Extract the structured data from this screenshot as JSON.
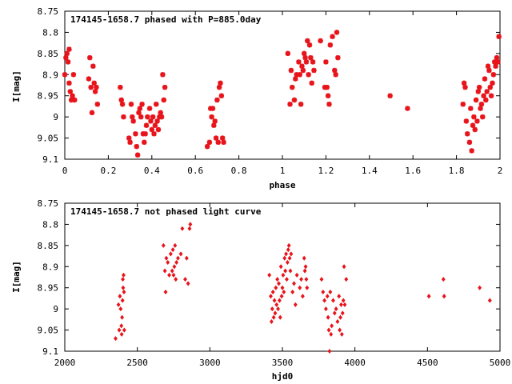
{
  "chart_data": [
    {
      "type": "scatter",
      "title": "174145-1658.7 phased with P=885.0day",
      "xlabel": "phase",
      "ylabel": "I[mag]",
      "xlim": [
        0,
        2
      ],
      "ylim": [
        9.1,
        8.75
      ],
      "y_inverted": true,
      "xticks": [
        0,
        0.2,
        0.4,
        0.6,
        0.8,
        1,
        1.2,
        1.4,
        1.6,
        1.8,
        2
      ],
      "xtick_labels": [
        "0",
        "0.2",
        "0.4",
        "0.6",
        "0.8",
        "1",
        "1.2",
        "1.4",
        "1.6",
        "1.8",
        "2"
      ],
      "yticks": [
        8.75,
        8.8,
        8.85,
        8.9,
        8.95,
        9,
        9.05,
        9.1
      ],
      "ytick_labels": [
        "8.75",
        "8.8",
        "8.85",
        "8.9",
        "8.95",
        "9",
        "9.05",
        "9.1"
      ],
      "grid": false,
      "marker_color": "#e8141b",
      "marker": "star",
      "points": [
        [
          0.0,
          8.9
        ],
        [
          0.005,
          8.86
        ],
        [
          0.01,
          8.85
        ],
        [
          0.015,
          8.87
        ],
        [
          0.02,
          8.84
        ],
        [
          0.02,
          8.92
        ],
        [
          0.025,
          8.94
        ],
        [
          0.03,
          8.96
        ],
        [
          0.035,
          8.95
        ],
        [
          0.04,
          8.9
        ],
        [
          0.045,
          8.96
        ],
        [
          0.11,
          8.91
        ],
        [
          0.115,
          8.86
        ],
        [
          0.12,
          8.93
        ],
        [
          0.125,
          8.99
        ],
        [
          0.13,
          8.88
        ],
        [
          0.135,
          8.92
        ],
        [
          0.14,
          8.94
        ],
        [
          0.145,
          8.93
        ],
        [
          0.15,
          8.97
        ],
        [
          0.255,
          8.93
        ],
        [
          0.26,
          8.96
        ],
        [
          0.265,
          8.97
        ],
        [
          0.27,
          9.0
        ],
        [
          0.295,
          9.05
        ],
        [
          0.3,
          9.06
        ],
        [
          0.305,
          8.97
        ],
        [
          0.31,
          9.0
        ],
        [
          0.315,
          9.01
        ],
        [
          0.325,
          9.04
        ],
        [
          0.33,
          9.07
        ],
        [
          0.335,
          9.09
        ],
        [
          0.34,
          8.99
        ],
        [
          0.345,
          8.98
        ],
        [
          0.35,
          9.0
        ],
        [
          0.355,
          8.97
        ],
        [
          0.36,
          9.04
        ],
        [
          0.365,
          9.06
        ],
        [
          0.37,
          9.04
        ],
        [
          0.375,
          9.02
        ],
        [
          0.38,
          9.0
        ],
        [
          0.39,
          8.98
        ],
        [
          0.395,
          9.01
        ],
        [
          0.4,
          9.03
        ],
        [
          0.405,
          9.0
        ],
        [
          0.41,
          9.04
        ],
        [
          0.415,
          9.02
        ],
        [
          0.42,
          8.97
        ],
        [
          0.425,
          9.01
        ],
        [
          0.43,
          9.03
        ],
        [
          0.435,
          9.0
        ],
        [
          0.44,
          8.99
        ],
        [
          0.445,
          9.0
        ],
        [
          0.45,
          8.9
        ],
        [
          0.455,
          8.96
        ],
        [
          0.46,
          8.93
        ],
        [
          0.655,
          9.07
        ],
        [
          0.665,
          9.06
        ],
        [
          0.67,
          8.98
        ],
        [
          0.675,
          9.0
        ],
        [
          0.68,
          8.98
        ],
        [
          0.685,
          9.02
        ],
        [
          0.69,
          9.01
        ],
        [
          0.695,
          9.05
        ],
        [
          0.7,
          8.96
        ],
        [
          0.705,
          9.06
        ],
        [
          0.71,
          8.93
        ],
        [
          0.715,
          8.92
        ],
        [
          0.72,
          8.95
        ],
        [
          0.725,
          9.05
        ],
        [
          0.73,
          9.06
        ],
        [
          1.025,
          8.85
        ],
        [
          1.035,
          8.97
        ],
        [
          1.04,
          8.89
        ],
        [
          1.045,
          8.93
        ],
        [
          1.055,
          8.96
        ],
        [
          1.06,
          8.91
        ],
        [
          1.065,
          8.9
        ],
        [
          1.075,
          8.87
        ],
        [
          1.08,
          8.9
        ],
        [
          1.085,
          8.97
        ],
        [
          1.09,
          8.88
        ],
        [
          1.095,
          8.89
        ],
        [
          1.1,
          8.85
        ],
        [
          1.105,
          8.86
        ],
        [
          1.11,
          8.87
        ],
        [
          1.115,
          8.82
        ],
        [
          1.12,
          8.9
        ],
        [
          1.125,
          8.83
        ],
        [
          1.13,
          8.86
        ],
        [
          1.135,
          8.92
        ],
        [
          1.14,
          8.87
        ],
        [
          1.145,
          8.89
        ],
        [
          1.175,
          8.82
        ],
        [
          1.195,
          8.93
        ],
        [
          1.2,
          8.87
        ],
        [
          1.205,
          8.93
        ],
        [
          1.21,
          8.95
        ],
        [
          1.215,
          8.97
        ],
        [
          1.22,
          8.83
        ],
        [
          1.23,
          8.81
        ],
        [
          1.24,
          8.89
        ],
        [
          1.245,
          8.9
        ],
        [
          1.25,
          8.8
        ],
        [
          1.255,
          8.86
        ],
        [
          1.495,
          8.95
        ],
        [
          1.575,
          8.98
        ],
        [
          1.83,
          8.97
        ],
        [
          1.835,
          8.92
        ],
        [
          1.84,
          8.93
        ],
        [
          1.845,
          9.01
        ],
        [
          1.85,
          9.04
        ],
        [
          1.86,
          9.06
        ],
        [
          1.865,
          8.98
        ],
        [
          1.87,
          9.08
        ],
        [
          1.875,
          9.02
        ],
        [
          1.88,
          9.0
        ],
        [
          1.885,
          9.03
        ],
        [
          1.89,
          8.96
        ],
        [
          1.895,
          9.01
        ],
        [
          1.9,
          8.94
        ],
        [
          1.905,
          8.93
        ],
        [
          1.91,
          8.98
        ],
        [
          1.915,
          8.97
        ],
        [
          1.92,
          9.0
        ],
        [
          1.925,
          8.95
        ],
        [
          1.93,
          8.91
        ],
        [
          1.935,
          8.96
        ],
        [
          1.94,
          8.94
        ],
        [
          1.945,
          8.88
        ],
        [
          1.95,
          8.89
        ],
        [
          1.955,
          8.93
        ],
        [
          1.96,
          8.95
        ],
        [
          1.965,
          8.92
        ],
        [
          1.97,
          8.9
        ],
        [
          1.975,
          8.87
        ],
        [
          1.98,
          8.88
        ],
        [
          1.985,
          8.86
        ],
        [
          1.99,
          8.87
        ],
        [
          1.995,
          8.81
        ]
      ]
    },
    {
      "type": "scatter",
      "title": "174145-1658.7 not phased light curve",
      "xlabel": "hjd0",
      "ylabel": "I[mag]",
      "xlim": [
        2000,
        5000
      ],
      "ylim": [
        9.1,
        8.75
      ],
      "y_inverted": true,
      "xticks": [
        2000,
        2500,
        3000,
        3500,
        4000,
        4500,
        5000
      ],
      "xtick_labels": [
        "2000",
        "2500",
        "3000",
        "3500",
        "4000",
        "4500",
        "5000"
      ],
      "yticks": [
        8.75,
        8.8,
        8.85,
        8.9,
        8.95,
        9,
        9.05,
        9.1
      ],
      "ytick_labels": [
        "8.75",
        "8.8",
        "8.85",
        "8.9",
        "8.95",
        "9",
        "9.05",
        "9.1"
      ],
      "grid": false,
      "marker_color": "#e8141b",
      "marker": "diamond",
      "points": [
        [
          2350,
          9.07
        ],
        [
          2370,
          8.99
        ],
        [
          2375,
          9.05
        ],
        [
          2380,
          8.97
        ],
        [
          2385,
          9.0
        ],
        [
          2390,
          9.04
        ],
        [
          2392,
          9.06
        ],
        [
          2395,
          9.02
        ],
        [
          2398,
          8.98
        ],
        [
          2400,
          8.93
        ],
        [
          2402,
          8.95
        ],
        [
          2405,
          8.92
        ],
        [
          2408,
          8.96
        ],
        [
          2410,
          9.05
        ],
        [
          2680,
          8.85
        ],
        [
          2690,
          8.91
        ],
        [
          2695,
          8.96
        ],
        [
          2700,
          8.88
        ],
        [
          2710,
          8.89
        ],
        [
          2720,
          8.92
        ],
        [
          2730,
          8.87
        ],
        [
          2740,
          8.91
        ],
        [
          2745,
          8.86
        ],
        [
          2750,
          8.92
        ],
        [
          2755,
          8.9
        ],
        [
          2760,
          8.85
        ],
        [
          2765,
          8.93
        ],
        [
          2770,
          8.89
        ],
        [
          2780,
          8.88
        ],
        [
          2800,
          8.87
        ],
        [
          2810,
          8.81
        ],
        [
          2830,
          8.93
        ],
        [
          2840,
          8.88
        ],
        [
          2850,
          8.94
        ],
        [
          2860,
          8.81
        ],
        [
          2865,
          8.8
        ],
        [
          3410,
          8.92
        ],
        [
          3420,
          8.97
        ],
        [
          3425,
          9.03
        ],
        [
          3430,
          9.0
        ],
        [
          3435,
          8.96
        ],
        [
          3440,
          9.02
        ],
        [
          3445,
          8.98
        ],
        [
          3450,
          9.01
        ],
        [
          3455,
          8.95
        ],
        [
          3460,
          8.99
        ],
        [
          3465,
          8.93
        ],
        [
          3470,
          9.0
        ],
        [
          3475,
          8.94
        ],
        [
          3480,
          8.98
        ],
        [
          3485,
          9.02
        ],
        [
          3490,
          8.9
        ],
        [
          3495,
          8.97
        ],
        [
          3500,
          8.95
        ],
        [
          3505,
          8.92
        ],
        [
          3510,
          8.96
        ],
        [
          3515,
          8.88
        ],
        [
          3520,
          8.91
        ],
        [
          3525,
          8.87
        ],
        [
          3530,
          8.93
        ],
        [
          3535,
          8.89
        ],
        [
          3540,
          8.86
        ],
        [
          3545,
          8.85
        ],
        [
          3550,
          8.88
        ],
        [
          3555,
          8.91
        ],
        [
          3560,
          8.87
        ],
        [
          3570,
          8.96
        ],
        [
          3580,
          8.94
        ],
        [
          3590,
          8.99
        ],
        [
          3600,
          8.92
        ],
        [
          3620,
          8.95
        ],
        [
          3630,
          8.93
        ],
        [
          3640,
          8.97
        ],
        [
          3650,
          8.88
        ],
        [
          3655,
          8.91
        ],
        [
          3660,
          8.9
        ],
        [
          3665,
          8.93
        ],
        [
          3670,
          8.95
        ],
        [
          3770,
          8.93
        ],
        [
          3780,
          8.96
        ],
        [
          3790,
          8.98
        ],
        [
          3800,
          9.0
        ],
        [
          3810,
          8.97
        ],
        [
          3815,
          9.02
        ],
        [
          3820,
          9.05
        ],
        [
          3825,
          9.1
        ],
        [
          3830,
          8.96
        ],
        [
          3835,
          9.06
        ],
        [
          3840,
          9.04
        ],
        [
          3850,
          8.98
        ],
        [
          3860,
          9.01
        ],
        [
          3870,
          9.0
        ],
        [
          3880,
          9.03
        ],
        [
          3890,
          8.97
        ],
        [
          3895,
          9.05
        ],
        [
          3900,
          9.02
        ],
        [
          3905,
          8.99
        ],
        [
          3910,
          9.06
        ],
        [
          3915,
          9.01
        ],
        [
          3920,
          8.98
        ],
        [
          3925,
          8.9
        ],
        [
          3930,
          8.99
        ],
        [
          3940,
          8.93
        ],
        [
          4510,
          8.97
        ],
        [
          4610,
          8.93
        ],
        [
          4615,
          8.97
        ],
        [
          4860,
          8.95
        ],
        [
          4930,
          8.98
        ]
      ]
    }
  ]
}
